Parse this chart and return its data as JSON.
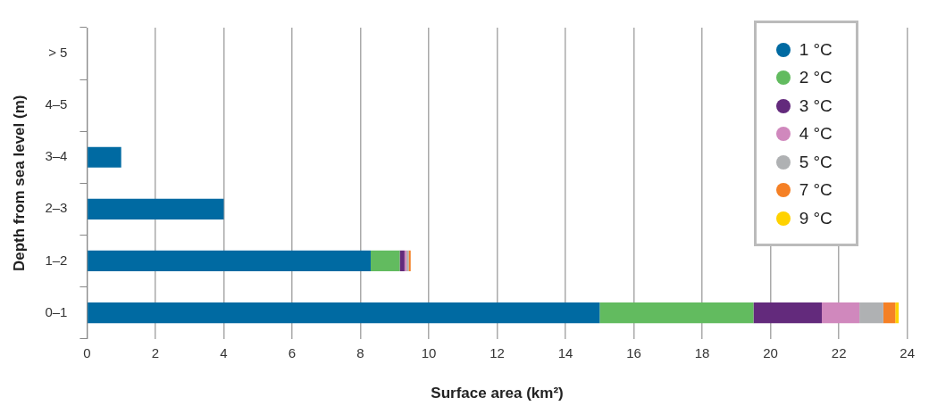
{
  "chart_data": {
    "type": "bar",
    "orientation": "horizontal",
    "stacked": true,
    "xlabel": "Surface area (km²)",
    "ylabel": "Depth from sea level (m)",
    "categories": [
      "> 5",
      "4–5",
      "3–4",
      "2–3",
      "1–2",
      "0–1"
    ],
    "series": [
      {
        "name": "1 °C",
        "color": "#006aa2",
        "values": [
          0,
          0,
          1.0,
          4.0,
          8.3,
          15.0
        ]
      },
      {
        "name": "2 °C",
        "color": "#62bb5f",
        "values": [
          null,
          null,
          null,
          null,
          0.85,
          4.5
        ]
      },
      {
        "name": "3 °C",
        "color": "#632a7c",
        "values": [
          null,
          null,
          null,
          null,
          0.14,
          2.0
        ]
      },
      {
        "name": "4 °C",
        "color": "#d088bd",
        "values": [
          null,
          null,
          null,
          null,
          0.06,
          1.1
        ]
      },
      {
        "name": "5 °C",
        "color": "#afb1b3",
        "values": [
          null,
          null,
          null,
          null,
          0.06,
          0.7
        ]
      },
      {
        "name": "7 °C",
        "color": "#f58025",
        "values": [
          null,
          null,
          null,
          null,
          0.06,
          0.35
        ]
      },
      {
        "name": "9 °C",
        "color": "#ffd200",
        "values": [
          null,
          null,
          null,
          null,
          null,
          0.1
        ]
      }
    ],
    "xlim": [
      0,
      24
    ],
    "xticks": [
      0,
      2,
      4,
      6,
      8,
      10,
      12,
      14,
      16,
      18,
      20,
      22,
      24
    ],
    "grid": "x",
    "legend": "top right"
  }
}
